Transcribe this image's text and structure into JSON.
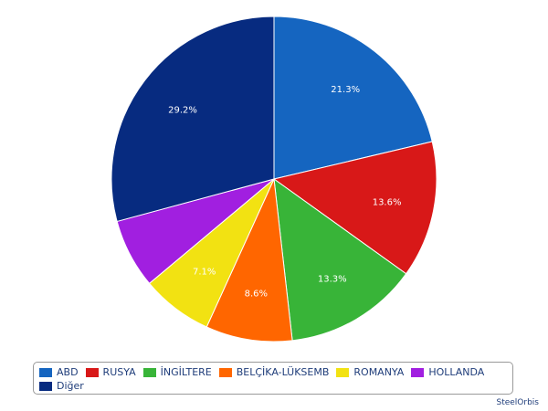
{
  "chart_data": {
    "type": "pie",
    "start_angle_deg": 0,
    "direction": "clockwise",
    "slices": [
      {
        "name": "ABD",
        "value": 21.3,
        "label": "21.3%",
        "color": "#1565c0"
      },
      {
        "name": "RUSYA",
        "value": 13.6,
        "label": "13.6%",
        "color": "#d81818"
      },
      {
        "name": "İNGİLTERE",
        "value": 13.3,
        "label": "13.3%",
        "color": "#38b438"
      },
      {
        "name": "BELÇİKA-LÜKSEMB",
        "value": 8.6,
        "label": "8.6%",
        "color": "#ff6600"
      },
      {
        "name": "ROMANYA",
        "value": 7.1,
        "label": "7.1%",
        "color": "#f2e212"
      },
      {
        "name": "HOLLANDA",
        "value": 6.9,
        "label": "",
        "color": "#a11fe0"
      },
      {
        "name": "Diğer",
        "value": 29.2,
        "label": "29.2%",
        "color": "#072b80"
      }
    ],
    "legend_position": "bottom"
  },
  "watermark": "SteelOrbis"
}
